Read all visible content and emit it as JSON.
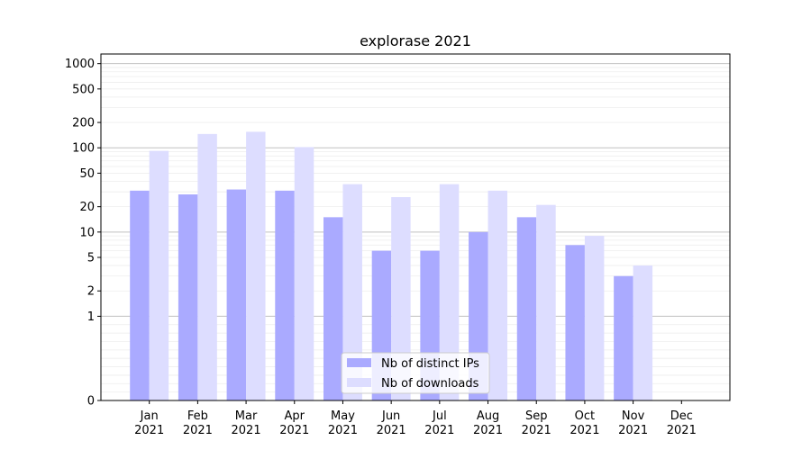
{
  "chart_data": {
    "type": "bar",
    "title": "explorase 2021",
    "xlabel": "",
    "ylabel": "",
    "yscale": "symlog",
    "ylim": [
      0,
      1300
    ],
    "yticks": [
      0,
      1,
      2,
      5,
      10,
      20,
      50,
      100,
      200,
      500,
      1000
    ],
    "ytick_labels": [
      "0",
      "1",
      "2",
      "5",
      "10",
      "20",
      "50",
      "100",
      "200",
      "500",
      "1000"
    ],
    "grid": true,
    "legend_position": "bottom-center",
    "categories": [
      {
        "month": "Jan",
        "year": "2021"
      },
      {
        "month": "Feb",
        "year": "2021"
      },
      {
        "month": "Mar",
        "year": "2021"
      },
      {
        "month": "Apr",
        "year": "2021"
      },
      {
        "month": "May",
        "year": "2021"
      },
      {
        "month": "Jun",
        "year": "2021"
      },
      {
        "month": "Jul",
        "year": "2021"
      },
      {
        "month": "Aug",
        "year": "2021"
      },
      {
        "month": "Sep",
        "year": "2021"
      },
      {
        "month": "Oct",
        "year": "2021"
      },
      {
        "month": "Nov",
        "year": "2021"
      },
      {
        "month": "Dec",
        "year": "2021"
      }
    ],
    "series": [
      {
        "name": "Nb of distinct IPs",
        "color": "#aaaaff",
        "values": [
          31,
          28,
          32,
          31,
          15,
          6,
          6,
          10,
          15,
          7,
          3,
          0
        ]
      },
      {
        "name": "Nb of downloads",
        "color": "#ddddff",
        "values": [
          92,
          146,
          155,
          102,
          37,
          26,
          37,
          31,
          21,
          9,
          4,
          0
        ]
      }
    ]
  }
}
